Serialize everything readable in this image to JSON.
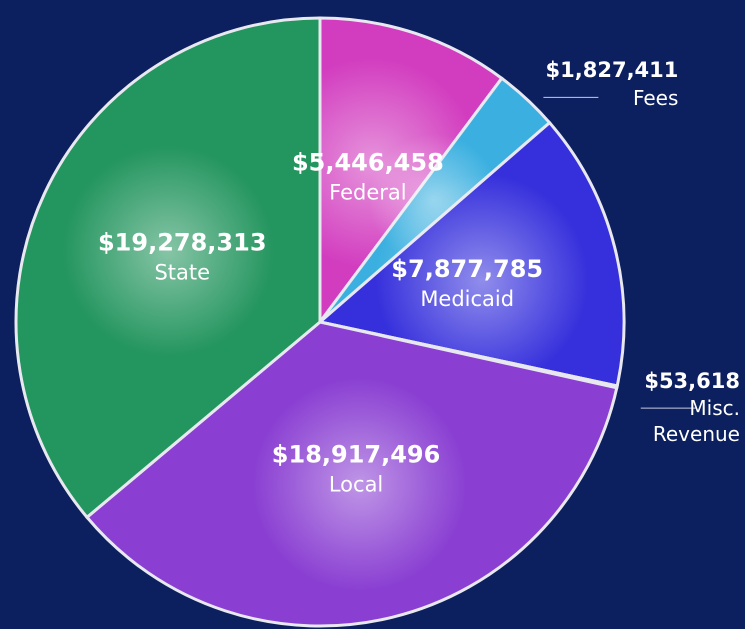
{
  "chart_data": {
    "type": "pie",
    "categories": [
      "Federal",
      "Fees",
      "Medicaid",
      "Misc. Revenue",
      "Local",
      "State"
    ],
    "values": [
      5446458,
      1827411,
      7877785,
      53618,
      18917496,
      19278313
    ],
    "value_labels": [
      "$5,446,458",
      "$1,827,411",
      "$7,877,785",
      "$53,618",
      "$18,917,496",
      "$19,278,313"
    ],
    "colors": [
      "#d23cbf",
      "#3bb0e0",
      "#3630dc",
      "#8a7ae0",
      "#8a3fd2",
      "#23955e"
    ]
  }
}
